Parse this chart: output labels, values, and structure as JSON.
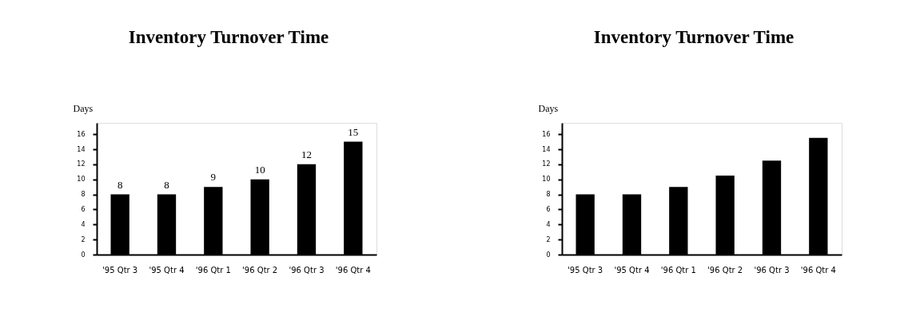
{
  "chart_data": [
    {
      "type": "bar",
      "title": "Inventory Turnover Time",
      "ylabel": "Days",
      "categories": [
        "'95 Qtr 3",
        "'95 Qtr 4",
        "'96 Qtr 1",
        "'96 Qtr 2",
        "'96 Qtr 3",
        "'96 Qtr 4"
      ],
      "values": [
        8,
        8,
        9,
        10,
        12,
        15
      ],
      "color": "#000000",
      "data_labels": true,
      "ylim": [
        0,
        17.5
      ],
      "yticks": [
        0,
        2,
        4,
        6,
        8,
        10,
        12,
        14,
        16
      ],
      "grid": false
    },
    {
      "type": "bar",
      "title": "Inventory Turnover Time",
      "ylabel": "Days",
      "categories": [
        "'95 Qtr 3",
        "'95 Qtr 4",
        "'96 Qtr 1",
        "'96 Qtr 2",
        "'96 Qtr 3",
        "'96 Qtr 4"
      ],
      "values": [
        8,
        8,
        9,
        10.5,
        12.5,
        15.5
      ],
      "color": "#000000",
      "ylim": [
        0,
        17.5
      ],
      "yticks": [
        0,
        2,
        4,
        6,
        8,
        10,
        12,
        14,
        16
      ],
      "grid": false
    }
  ]
}
